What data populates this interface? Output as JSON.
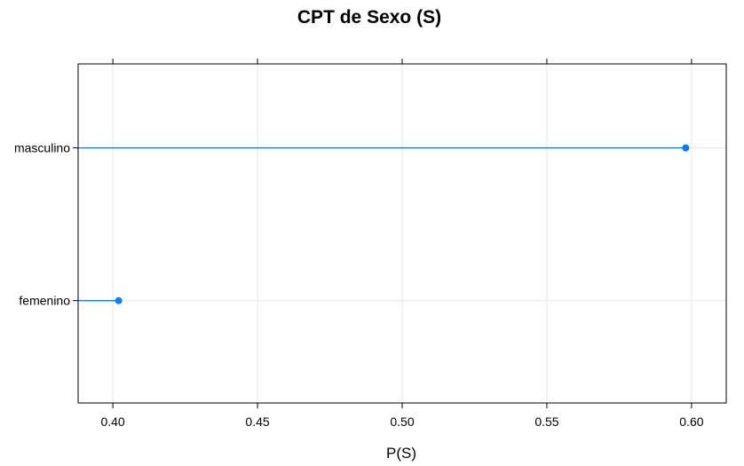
{
  "chart_data": {
    "type": "dot",
    "title": "CPT de Sexo (S)",
    "xlabel": "P(S)",
    "ylabel": "",
    "categories": [
      "masculino",
      "femenino"
    ],
    "values": [
      0.598,
      0.402
    ],
    "xlim": [
      0.388,
      0.612
    ],
    "xticks": [
      "0.40",
      "0.45",
      "0.50",
      "0.55",
      "0.60"
    ],
    "grid": true,
    "series_color": "#0080ff",
    "grid_color": "#e6e6e6",
    "frame_color": "#000000"
  }
}
